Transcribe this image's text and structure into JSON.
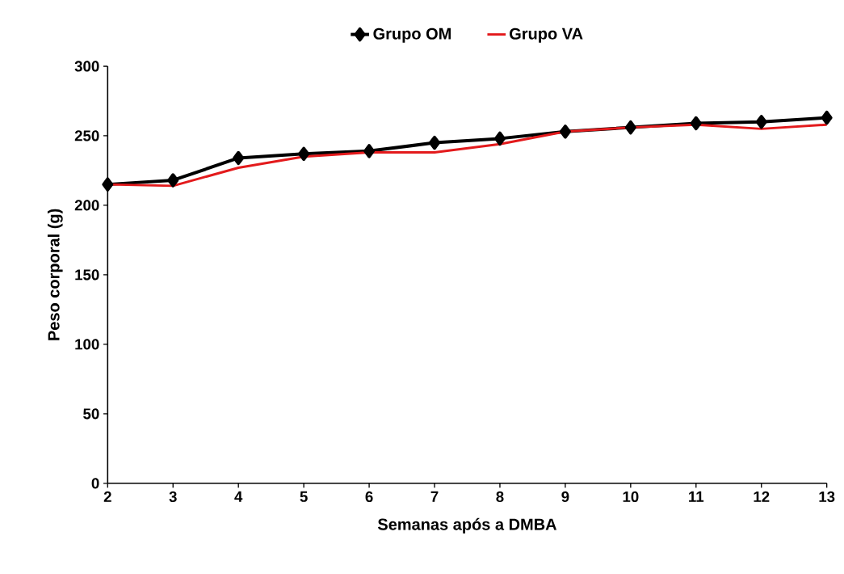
{
  "chart_data": {
    "type": "line",
    "xlabel": "Semanas após a DMBA",
    "ylabel": "Peso corporal (g)",
    "x": [
      2,
      3,
      4,
      5,
      6,
      7,
      8,
      9,
      10,
      11,
      12,
      13
    ],
    "series": [
      {
        "name": "Grupo OM",
        "color": "#000000",
        "marker": "diamond",
        "values": [
          215,
          218,
          234,
          237,
          239,
          245,
          248,
          253,
          256,
          259,
          260,
          263
        ]
      },
      {
        "name": "Grupo VA",
        "color": "#e31a1c",
        "marker": "none",
        "values": [
          215,
          214,
          227,
          235,
          238,
          238,
          244,
          253,
          256,
          258,
          255,
          258
        ]
      }
    ],
    "xlim": [
      2,
      13
    ],
    "xticks": [
      2,
      3,
      4,
      5,
      6,
      7,
      8,
      9,
      10,
      11,
      12,
      13
    ],
    "ylim": [
      0,
      300
    ],
    "yticks": [
      0,
      50,
      100,
      150,
      200,
      250,
      300
    ],
    "grid": false,
    "legend": "top",
    "line_style": "solid"
  }
}
